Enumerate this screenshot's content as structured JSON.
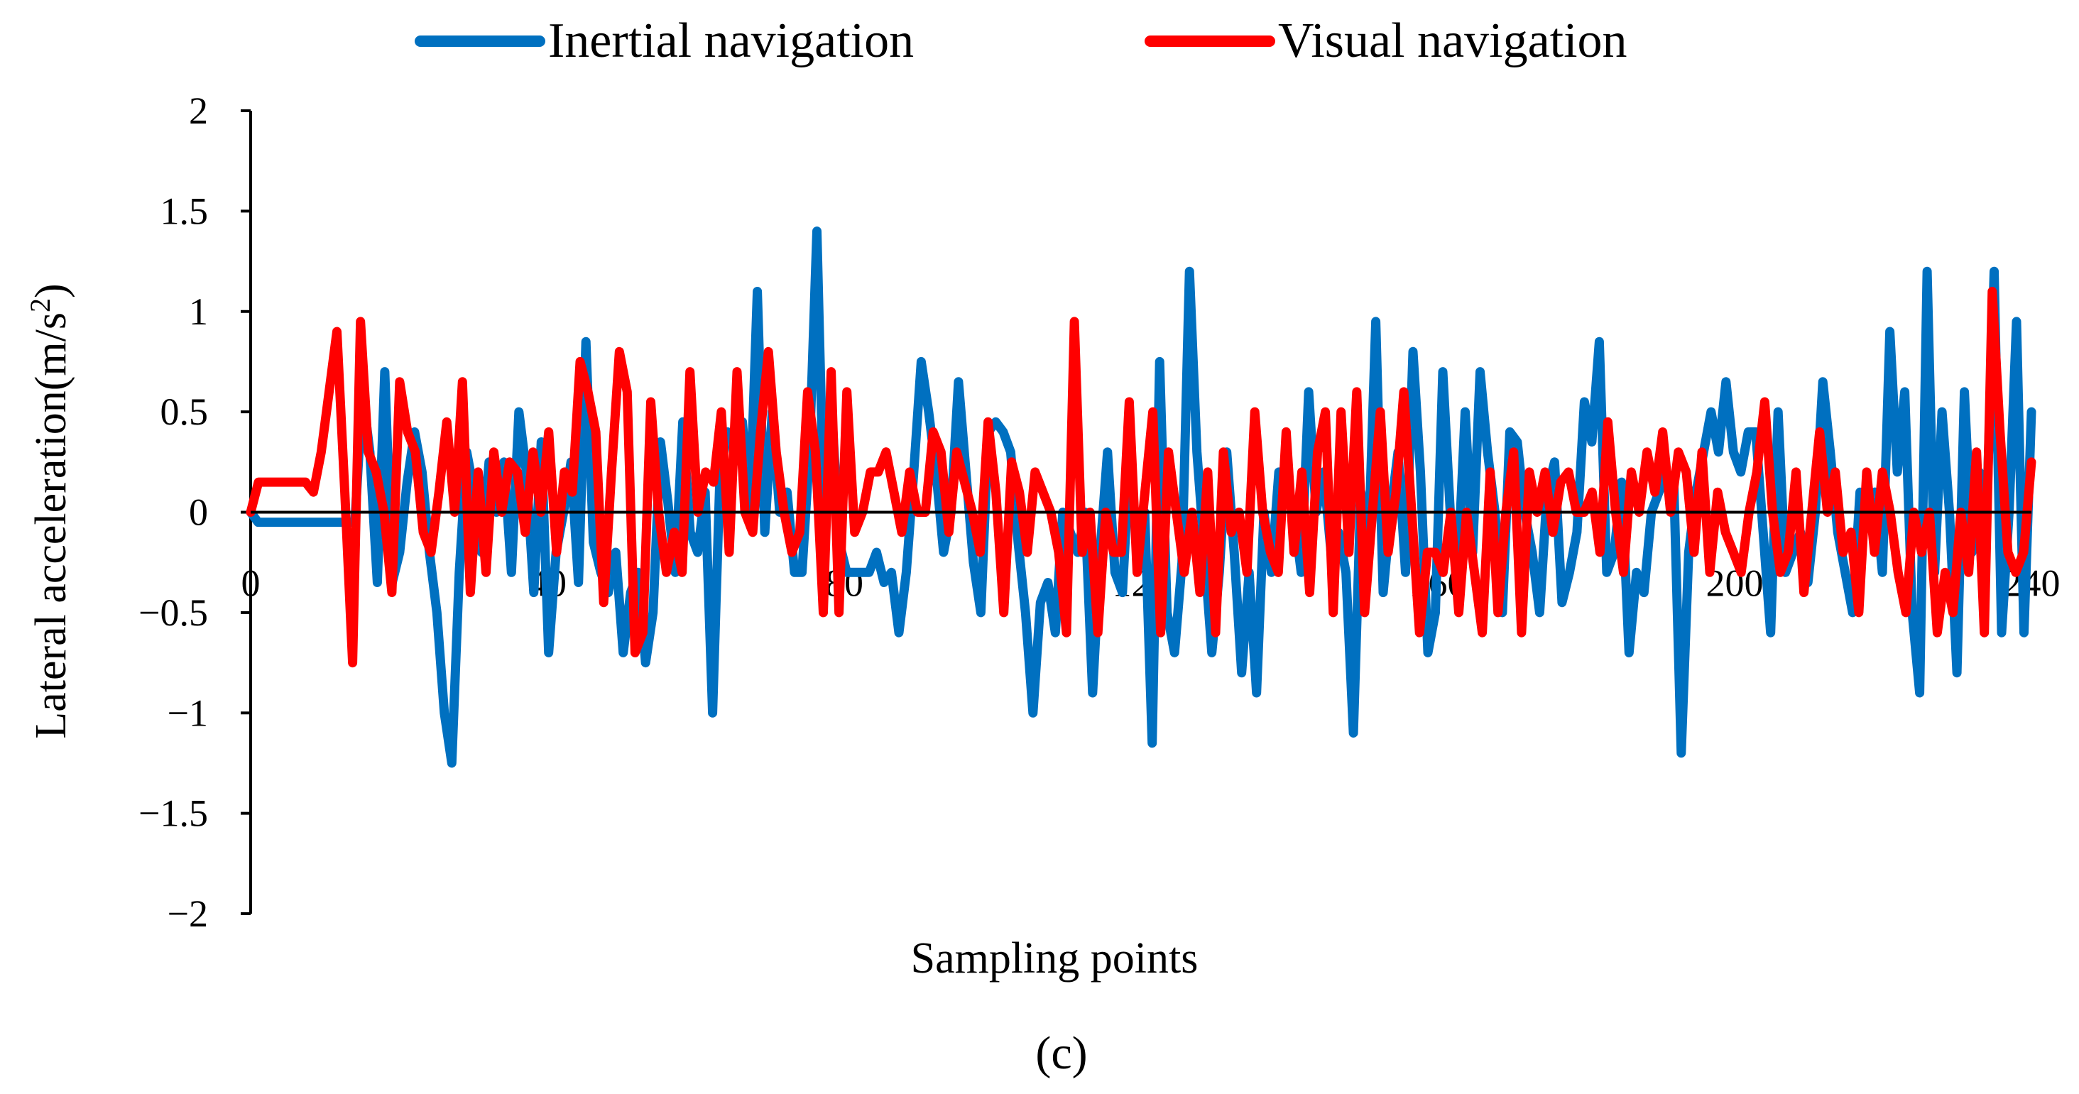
{
  "chart_data": {
    "type": "line",
    "title": "",
    "xlabel": "Sampling points",
    "ylabel": "Lateral acceleration(m/s",
    "ylabel_sup": "2",
    "ylabel_close": ")",
    "panel_label": "(c)",
    "xlim": [
      0,
      240
    ],
    "ylim": [
      -2,
      2
    ],
    "x_ticks": [
      0,
      40,
      80,
      120,
      160,
      200,
      240
    ],
    "y_ticks": [
      2,
      1.5,
      1,
      0.5,
      0,
      -0.5,
      -1,
      -1.5,
      -2
    ],
    "y_tick_labels": [
      "2",
      "1.5",
      "1",
      "0.5",
      "0",
      "−0.5",
      "−1",
      "−1.5",
      "−2"
    ],
    "legend_position": "top",
    "grid": false,
    "series": [
      {
        "name": "Inertial navigation",
        "color": "#0070C0",
        "values": [
          0.0,
          -0.05,
          -0.05,
          -0.05,
          -0.05,
          -0.05,
          -0.05,
          -0.05,
          -0.05,
          -0.05,
          -0.05,
          -0.05,
          -0.05,
          -0.05,
          -0.05,
          0.6,
          0.3,
          -0.35,
          0.7,
          -0.35,
          -0.2,
          0.15,
          0.4,
          0.2,
          -0.2,
          -0.5,
          -1.0,
          -1.25,
          -0.3,
          0.3,
          0.1,
          -0.2,
          0.25,
          0.0,
          0.25,
          -0.3,
          0.5,
          0.2,
          -0.4,
          0.35,
          -0.7,
          -0.2,
          0.0,
          0.25,
          -0.35,
          0.85,
          -0.15,
          -0.3,
          -0.4,
          -0.2,
          -0.7,
          -0.4,
          -0.3,
          -0.75,
          -0.5,
          0.35,
          0.05,
          -0.3,
          0.45,
          -0.1,
          -0.2,
          0.1,
          -1.0,
          0.2,
          0.4,
          0.35,
          0.45,
          0.0,
          1.1,
          -0.1,
          0.5,
          0.0,
          0.1,
          -0.3,
          -0.3,
          0.3,
          1.4,
          -0.1,
          0.5,
          -0.15,
          -0.3,
          -0.3,
          -0.3,
          -0.3,
          -0.2,
          -0.35,
          -0.3,
          -0.6,
          -0.3,
          0.2,
          0.75,
          0.5,
          0.2,
          -0.2,
          0.0,
          0.65,
          0.2,
          -0.25,
          -0.5,
          0.4,
          0.45,
          0.4,
          0.3,
          -0.15,
          -0.5,
          -1.0,
          -0.45,
          -0.35,
          -0.6,
          0.0,
          -0.1,
          -0.2,
          0.0,
          -0.9,
          -0.2,
          0.3,
          -0.3,
          -0.4,
          0.3,
          -0.2,
          0.0,
          -1.15,
          0.75,
          -0.5,
          -0.7,
          -0.25,
          1.2,
          0.3,
          -0.2,
          -0.7,
          -0.3,
          0.3,
          -0.2,
          -0.8,
          -0.3,
          -0.9,
          0.0,
          -0.3,
          0.2,
          0.1,
          0.0,
          -0.3,
          0.6,
          0.0,
          0.2,
          -0.2,
          -0.1,
          -0.3,
          -1.1,
          0.1,
          -0.2,
          0.95,
          -0.4,
          0.0,
          0.3,
          -0.3,
          0.8,
          0.2,
          -0.7,
          -0.5,
          0.7,
          0.0,
          -0.3,
          0.5,
          -0.2,
          0.7,
          0.3,
          0.0,
          -0.5,
          0.4,
          0.35,
          0.0,
          -0.2,
          -0.5,
          0.1,
          0.25,
          -0.45,
          -0.3,
          -0.1,
          0.55,
          0.35,
          0.85,
          -0.3,
          -0.2,
          0.15,
          -0.7,
          -0.3,
          -0.4,
          0.0,
          0.1,
          0.2,
          0.15,
          -1.2,
          -0.2,
          0.1,
          0.3,
          0.5,
          0.3,
          0.65,
          0.3,
          0.2,
          0.4,
          0.4,
          -0.1,
          -0.6,
          0.5,
          -0.3,
          -0.2,
          -0.1,
          -0.35,
          0.0,
          0.65,
          0.3,
          -0.1,
          -0.3,
          -0.5,
          0.1,
          0.0,
          0.1,
          -0.3,
          0.9,
          0.2,
          0.6,
          -0.5,
          -0.9,
          1.2,
          -0.3,
          0.5,
          0.0,
          -0.8,
          0.6,
          -0.2,
          0.2,
          0.0,
          1.2,
          -0.6,
          0.0,
          0.95,
          -0.6,
          0.5
        ]
      },
      {
        "name": "Visual navigation",
        "color": "#FF0000",
        "values": [
          0.0,
          0.15,
          0.15,
          0.15,
          0.15,
          0.15,
          0.15,
          0.15,
          0.1,
          0.3,
          0.6,
          0.9,
          0.1,
          -0.75,
          0.95,
          0.3,
          0.2,
          0.0,
          -0.4,
          0.65,
          0.4,
          0.3,
          -0.1,
          -0.2,
          0.1,
          0.45,
          0.0,
          0.65,
          -0.4,
          0.2,
          -0.3,
          0.3,
          0.0,
          0.25,
          0.2,
          -0.1,
          0.3,
          0.0,
          0.4,
          -0.2,
          0.2,
          0.1,
          0.75,
          0.6,
          0.4,
          -0.45,
          0.2,
          0.8,
          0.6,
          -0.7,
          -0.6,
          0.55,
          0.0,
          -0.3,
          -0.1,
          -0.3,
          0.7,
          0.0,
          0.2,
          0.15,
          0.5,
          -0.2,
          0.7,
          0.0,
          -0.1,
          0.4,
          0.8,
          0.3,
          0.0,
          -0.2,
          -0.1,
          0.6,
          0.3,
          -0.5,
          0.7,
          -0.5,
          0.6,
          -0.1,
          0.0,
          0.2,
          0.2,
          0.3,
          0.1,
          -0.1,
          0.2,
          0.0,
          0.0,
          0.4,
          0.3,
          -0.1,
          0.3,
          0.15,
          0.0,
          -0.2,
          0.45,
          0.1,
          -0.5,
          0.25,
          0.1,
          -0.2,
          0.2,
          0.1,
          0.0,
          -0.2,
          -0.6,
          0.95,
          -0.2,
          0.0,
          -0.6,
          0.0,
          -0.2,
          -0.2,
          0.55,
          -0.3,
          0.1,
          0.5,
          -0.6,
          0.3,
          0.0,
          -0.3,
          0.0,
          -0.4,
          0.2,
          -0.6,
          0.3,
          -0.1,
          0.0,
          -0.3,
          0.5,
          0.0,
          -0.2,
          -0.3,
          0.4,
          -0.2,
          0.2,
          -0.4,
          0.3,
          0.5,
          -0.5,
          0.5,
          -0.2,
          0.6,
          -0.5,
          0.0,
          0.5,
          -0.2,
          0.1,
          0.6,
          0.0,
          -0.6,
          -0.2,
          -0.2,
          -0.3,
          0.0,
          -0.5,
          0.0,
          -0.3,
          -0.6,
          0.2,
          -0.5,
          0.0,
          0.3,
          -0.6,
          0.2,
          0.0,
          0.2,
          -0.1,
          0.15,
          0.2,
          0.0,
          0.0,
          0.1,
          -0.2,
          0.45,
          0.0,
          -0.3,
          0.2,
          0.0,
          0.3,
          0.1,
          0.4,
          0.0,
          0.3,
          0.2,
          -0.2,
          0.3,
          -0.3,
          0.1,
          -0.1,
          -0.2,
          -0.3,
          0.0,
          0.2,
          0.55,
          0.0,
          -0.3,
          -0.2,
          0.2,
          -0.4,
          0.0,
          0.4,
          0.0,
          0.2,
          -0.2,
          -0.1,
          -0.5,
          0.2,
          -0.2,
          0.2,
          0.0,
          -0.3,
          -0.5,
          0.0,
          -0.2,
          0.0,
          -0.6,
          -0.3,
          -0.5,
          0.0,
          -0.3,
          0.3,
          -0.6,
          1.1,
          0.4,
          -0.2,
          -0.3,
          -0.2,
          0.25
        ]
      }
    ]
  }
}
